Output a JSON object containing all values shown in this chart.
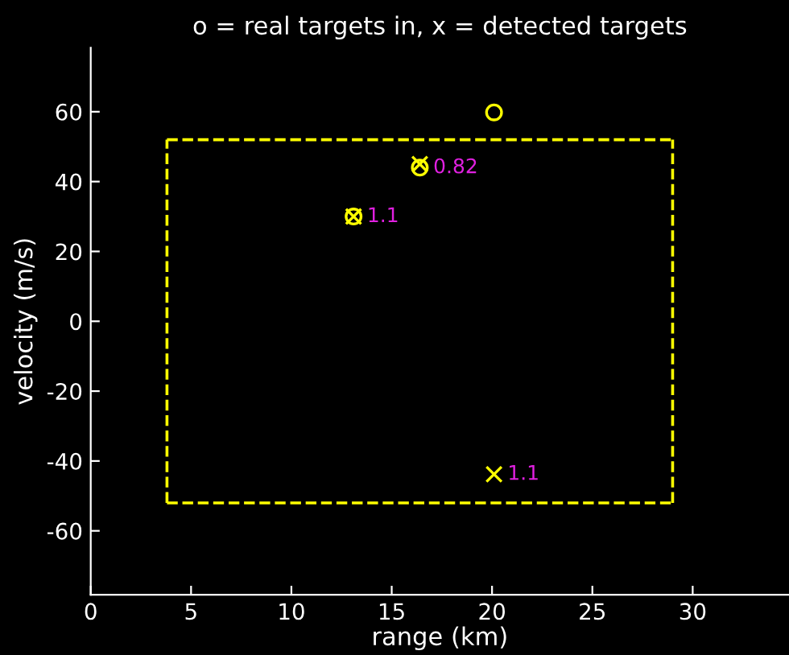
{
  "chart_data": {
    "type": "scatter",
    "title": "o = real targets in, x = detected targets",
    "xlabel": "range (km)",
    "ylabel": "velocity (m/s)",
    "xlim": [
      0,
      34.8
    ],
    "ylim": [
      -78.3,
      78.3
    ],
    "xticks": [
      0,
      5,
      10,
      15,
      20,
      25,
      30
    ],
    "yticks": [
      -60,
      -40,
      -20,
      0,
      20,
      40,
      60
    ],
    "grid": false,
    "legend": false,
    "series": [
      {
        "type": "line",
        "color": "#ffff00",
        "line_style": "dashed",
        "marker": "none",
        "x": [
          3.8,
          29
        ],
        "values": [
          52,
          52
        ]
      },
      {
        "type": "line",
        "color": "#ffff00",
        "line_style": "dashed",
        "marker": "none",
        "x": [
          3.8,
          29
        ],
        "values": [
          -52,
          -52
        ]
      },
      {
        "type": "line",
        "color": "#ffff00",
        "line_style": "dashed",
        "marker": "none",
        "x": [
          3.8,
          3.8
        ],
        "values": [
          -52,
          52
        ]
      },
      {
        "type": "line",
        "color": "#ffff00",
        "line_style": "dashed",
        "marker": "none",
        "x": [
          29,
          29
        ],
        "values": [
          -52,
          52
        ]
      },
      {
        "color": "#ffff00",
        "marker": "circle",
        "x": [
          13.1,
          16.4,
          20.1
        ],
        "values": [
          30,
          44,
          59.8
        ]
      },
      {
        "color": "#ffff00",
        "marker": "cross",
        "x": [
          13.1,
          16.4,
          20.1
        ],
        "values": [
          30,
          45,
          -43.8
        ]
      }
    ],
    "annotations": [
      {
        "text": "1.1",
        "x": 13.1,
        "y": 30
      },
      {
        "text": "0.82",
        "x": 16.4,
        "y": 44
      },
      {
        "text": "1.1",
        "x": 20.1,
        "y": -43.8
      }
    ]
  }
}
